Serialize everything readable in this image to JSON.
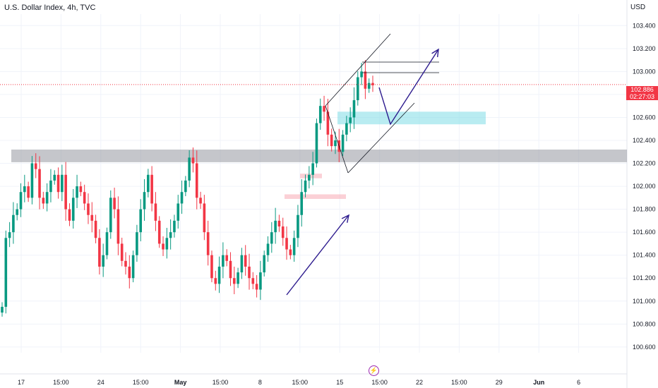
{
  "header": {
    "title": "U.S. Dollar Index, 4h, TVC",
    "currency": "USD"
  },
  "price_tag": {
    "price": "102.886",
    "countdown": "02:27:03",
    "color": "#f23645"
  },
  "colors": {
    "bull": "#089981",
    "bear": "#f23645",
    "drawing": "#2d1b8e",
    "zone_gray": "#9598a1",
    "zone_cyan": "#7fdde6",
    "zone_pink": "#f7a9b4"
  },
  "event_icon": "lightning-icon",
  "chart_data": {
    "type": "candlestick",
    "title": "U.S. Dollar Index, 4h, TVC",
    "interval": "4h",
    "y_axis_ticks": [
      "103.400",
      "103.200",
      "103.000",
      "102.800",
      "102.600",
      "102.400",
      "102.200",
      "102.000",
      "101.800",
      "101.600",
      "101.400",
      "101.200",
      "101.000",
      "100.800",
      "100.600"
    ],
    "x_axis_ticks": [
      {
        "label": "17",
        "bold": false
      },
      {
        "label": "15:00",
        "bold": false
      },
      {
        "label": "24",
        "bold": false
      },
      {
        "label": "15:00",
        "bold": false
      },
      {
        "label": "May",
        "bold": true
      },
      {
        "label": "15:00",
        "bold": false
      },
      {
        "label": "8",
        "bold": false
      },
      {
        "label": "15:00",
        "bold": false
      },
      {
        "label": "15",
        "bold": false
      },
      {
        "label": "15:00",
        "bold": false
      },
      {
        "label": "22",
        "bold": false
      },
      {
        "label": "15:00",
        "bold": false
      },
      {
        "label": "29",
        "bold": false
      },
      {
        "label": "Jun",
        "bold": true
      },
      {
        "label": "6",
        "bold": false
      }
    ],
    "y_range": [
      100.55,
      103.5
    ],
    "current_price": 102.886,
    "approx_close_path": [
      100.95,
      101.55,
      101.6,
      101.75,
      101.8,
      101.95,
      102.0,
      101.9,
      102.2,
      102.15,
      101.9,
      101.85,
      101.95,
      102.05,
      102.1,
      101.95,
      102.1,
      101.8,
      101.7,
      101.9,
      102.0,
      101.95,
      101.85,
      101.75,
      101.7,
      101.55,
      101.3,
      101.4,
      101.6,
      101.9,
      101.8,
      101.5,
      101.35,
      101.3,
      101.2,
      101.4,
      101.6,
      101.8,
      101.95,
      102.1,
      101.85,
      101.7,
      101.5,
      101.45,
      101.55,
      101.6,
      101.7,
      101.85,
      101.95,
      102.05,
      102.25,
      102.2,
      101.9,
      101.85,
      101.6,
      101.4,
      101.2,
      101.15,
      101.3,
      101.4,
      101.35,
      101.2,
      101.15,
      101.25,
      101.4,
      101.3,
      101.2,
      101.15,
      101.1,
      101.25,
      101.4,
      101.5,
      101.6,
      101.7,
      101.65,
      101.55,
      101.45,
      101.4,
      101.55,
      101.75,
      101.95,
      102.05,
      102.1,
      102.2,
      102.55,
      102.7,
      102.65,
      102.45,
      102.35,
      102.4,
      102.3,
      102.45,
      102.55,
      102.6,
      102.75,
      102.95,
      103.0,
      102.85,
      102.9,
      102.88
    ],
    "zones": [
      {
        "name": "resistance-support-zone",
        "price_range": [
          102.21,
          102.32
        ],
        "color": "#9598a1"
      },
      {
        "name": "demand-zone",
        "price_range": [
          102.54,
          102.65
        ],
        "color": "#7fdde6"
      },
      {
        "name": "upper-pink-zone",
        "price_range": [
          102.07,
          102.11
        ],
        "color": "#f7a9b4"
      },
      {
        "name": "lower-pink-zone",
        "price_range": [
          101.89,
          101.93
        ],
        "color": "#f7a9b4"
      }
    ]
  }
}
